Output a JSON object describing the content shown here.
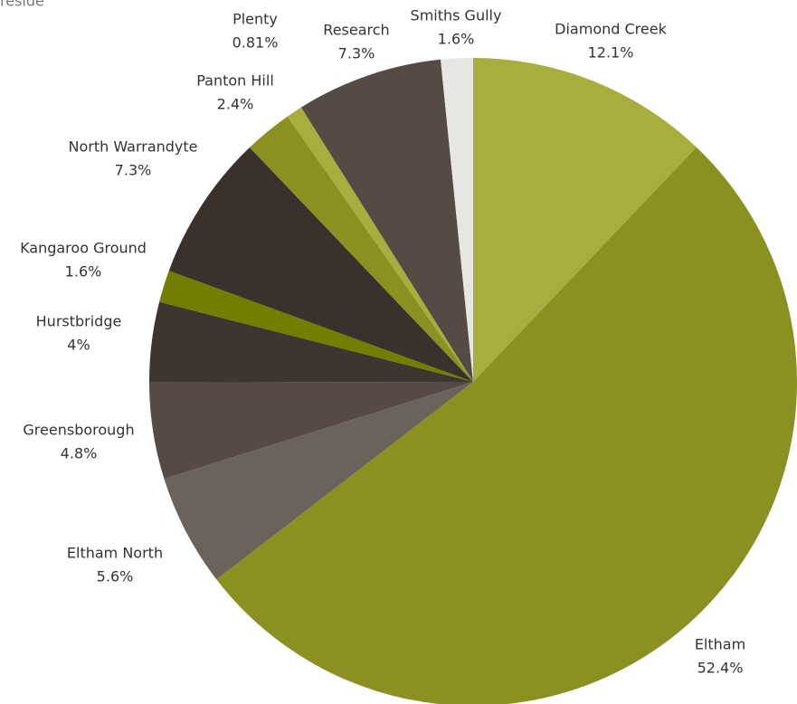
{
  "chart_data": {
    "type": "pie",
    "title": "reside",
    "categories": [
      "Diamond Creek",
      "Eltham",
      "Eltham North",
      "Greensborough",
      "Hurstbridge",
      "Kangaroo Ground",
      "North Warrandyte",
      "Panton Hill",
      "Plenty",
      "Research",
      "Smiths Gully"
    ],
    "values": [
      12.1,
      52.4,
      5.6,
      4.8,
      4,
      1.6,
      7.3,
      2.4,
      0.81,
      7.3,
      1.6
    ],
    "value_labels": [
      "12.1%",
      "52.4%",
      "5.6%",
      "4.8%",
      "4%",
      "1.6%",
      "7.3%",
      "2.4%",
      "0.81%",
      "7.3%",
      "1.6%"
    ],
    "colors": [
      "#a8ae3e",
      "#8a9120",
      "#6b625c",
      "#554a45",
      "#3e3531",
      "#737d00",
      "#3a302c",
      "#8a9120",
      "#a8ae3e",
      "#554a44",
      "#e8e6e3"
    ]
  }
}
